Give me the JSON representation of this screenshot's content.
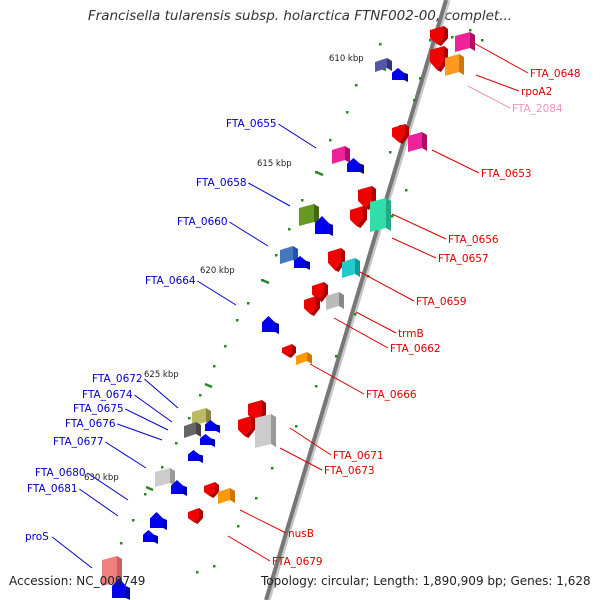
{
  "title": "Francisella tularensis subsp. holarctica FTNF002-00, complet...",
  "accession": "Accession: NC_009749",
  "topology": "Topology: circular; Length: 1,890,909 bp; Genes: 1,628",
  "colors": {
    "forward_label": "#dd0000",
    "reverse_label": "#0000cc",
    "tick": "#228822",
    "backbone": "#777777",
    "faint_label": "#f090c0"
  },
  "kbp_ticks": [
    {
      "label": "610 kbp"
    },
    {
      "label": "615 kbp"
    },
    {
      "label": "620 kbp"
    },
    {
      "label": "625 kbp"
    },
    {
      "label": "630 kbp"
    }
  ],
  "reverse_labels": [
    {
      "label": "FTA_0655"
    },
    {
      "label": "FTA_0658"
    },
    {
      "label": "FTA_0660"
    },
    {
      "label": "FTA_0664"
    },
    {
      "label": "FTA_0672"
    },
    {
      "label": "FTA_0674"
    },
    {
      "label": "FTA_0675"
    },
    {
      "label": "FTA_0676"
    },
    {
      "label": "FTA_0677"
    },
    {
      "label": "FTA_0680"
    },
    {
      "label": "FTA_0681"
    },
    {
      "label": "proS"
    }
  ],
  "forward_labels": [
    {
      "label": "FTA_0648"
    },
    {
      "label": "rpoA2"
    },
    {
      "label": "FTA_2084"
    },
    {
      "label": "FTA_0653"
    },
    {
      "label": "FTA_0656"
    },
    {
      "label": "FTA_0657"
    },
    {
      "label": "FTA_0659"
    },
    {
      "label": "trmB"
    },
    {
      "label": "FTA_0662"
    },
    {
      "label": "FTA_0666"
    },
    {
      "label": "FTA_0671"
    },
    {
      "label": "FTA_0673"
    },
    {
      "label": "nusB"
    },
    {
      "label": "FTA_0679"
    }
  ]
}
